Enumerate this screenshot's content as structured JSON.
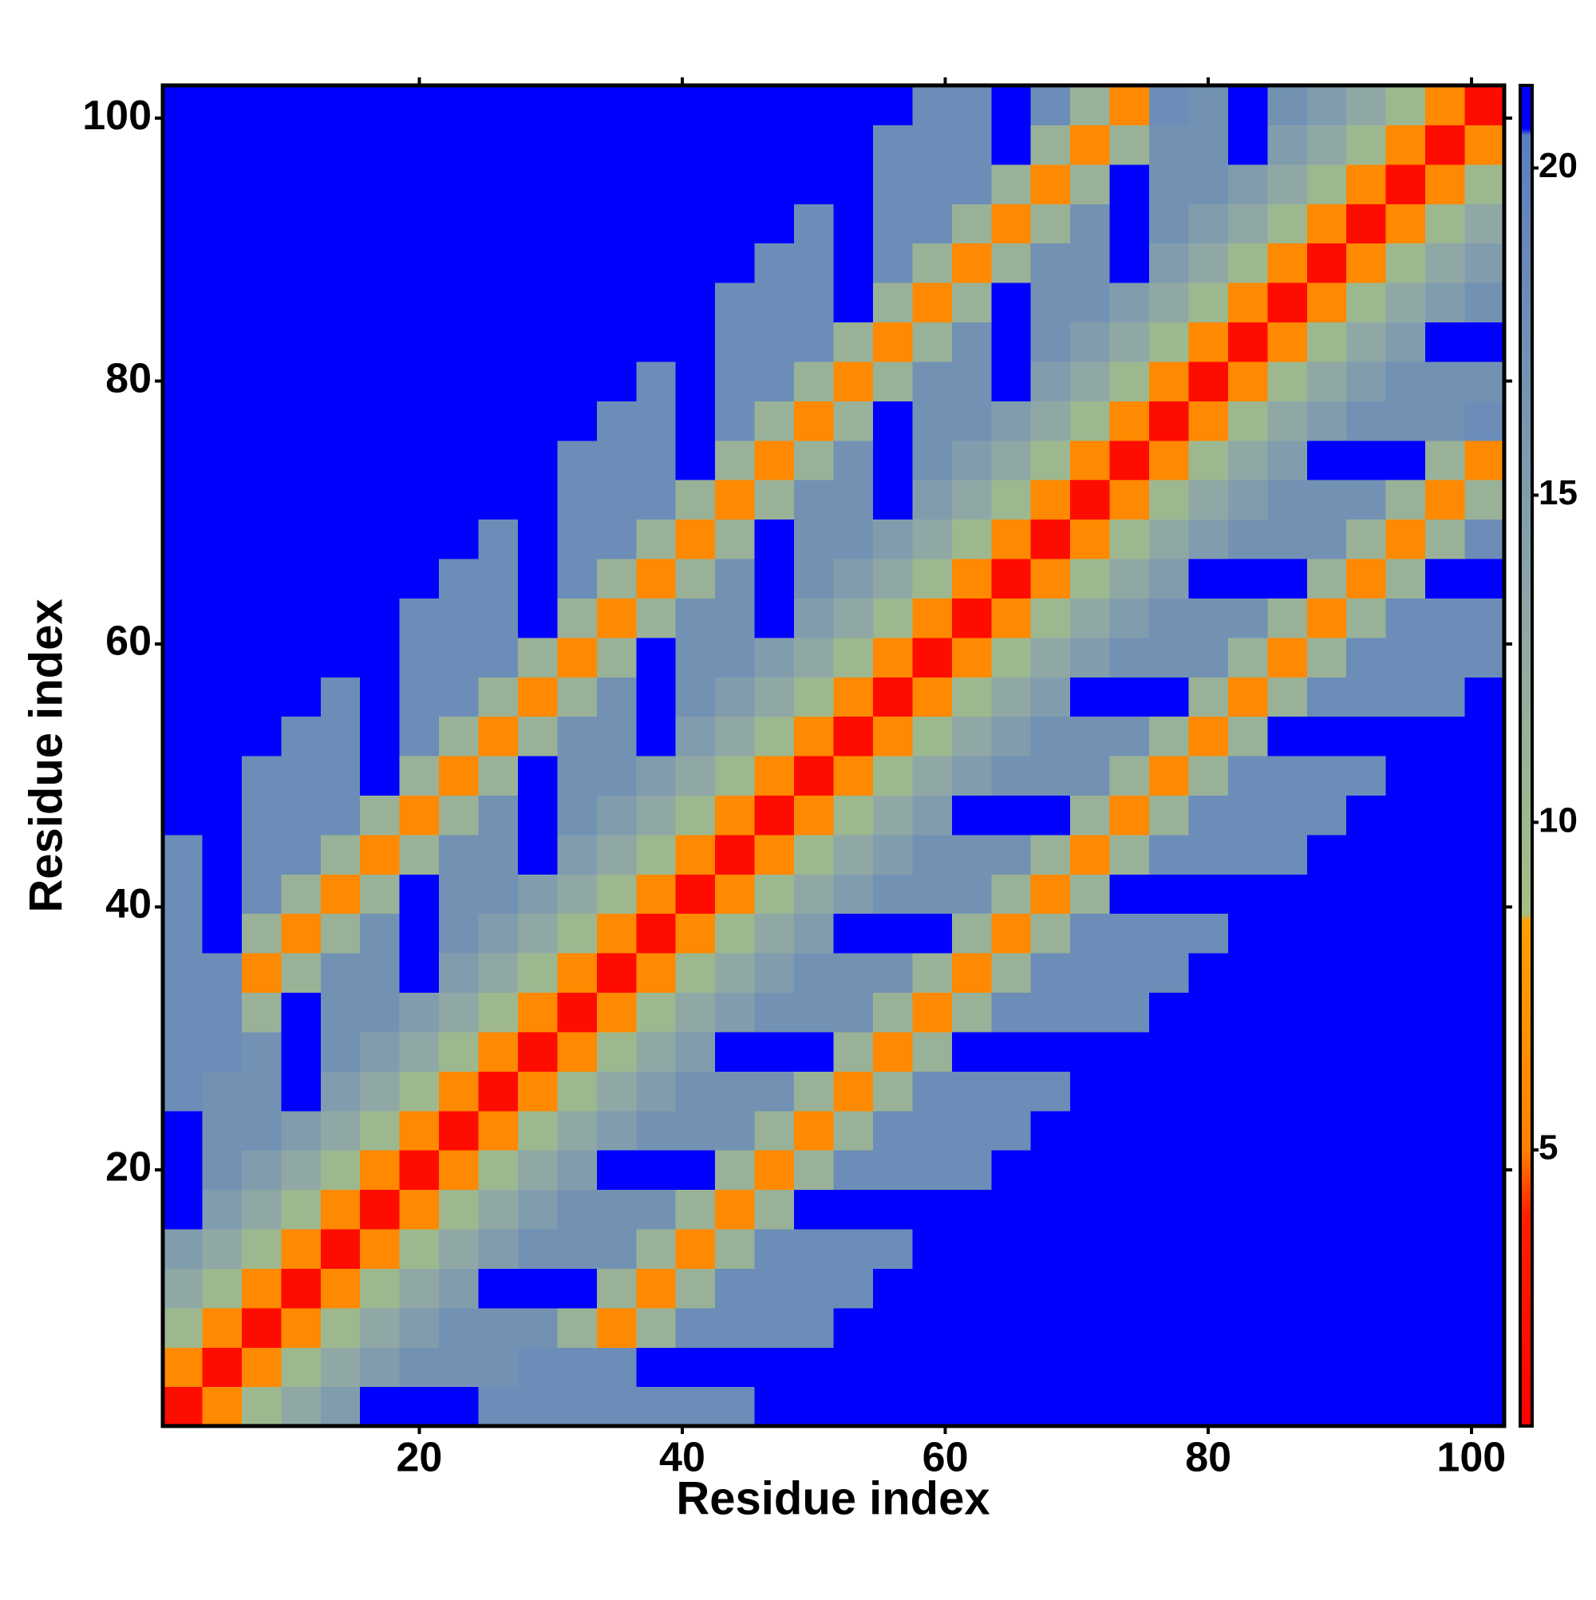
{
  "chart_data": {
    "type": "heatmap",
    "xlabel": "Residue index",
    "ylabel": "Residue index",
    "x": [
      2,
      5,
      8,
      11,
      14,
      17,
      20,
      23,
      26,
      29,
      32,
      35,
      38,
      41,
      44,
      47,
      50,
      53,
      56,
      59,
      62,
      65,
      68,
      71,
      74,
      77,
      80,
      83,
      86,
      89,
      92,
      95,
      98,
      101
    ],
    "y": [
      2,
      5,
      8,
      11,
      14,
      17,
      20,
      23,
      26,
      29,
      32,
      35,
      38,
      41,
      44,
      47,
      50,
      53,
      56,
      59,
      62,
      65,
      68,
      71,
      74,
      77,
      80,
      83,
      86,
      89,
      92,
      95,
      98,
      101
    ],
    "xlim": [
      0.5,
      102.5
    ],
    "ylim": [
      0.5,
      102.5
    ],
    "xticks": [
      20,
      40,
      60,
      80,
      100
    ],
    "yticks": [
      20,
      40,
      60,
      80,
      100
    ],
    "colorbar": {
      "lim": [
        0.78,
        21.26
      ],
      "ticks": [
        5,
        10,
        15,
        20
      ]
    },
    "colorscale": [
      {
        "value": 0.78,
        "color": "#ff0000"
      },
      {
        "value": 4,
        "color": "#ff2000"
      },
      {
        "value": 5,
        "color": "#ff8000"
      },
      {
        "value": 8.5,
        "color": "#ffa000"
      },
      {
        "value": 8.6,
        "color": "#a4bf84"
      },
      {
        "value": 13,
        "color": "#8fa8a6"
      },
      {
        "value": 20.5,
        "color": "#5b7fbf"
      },
      {
        "value": 20.6,
        "color": "#0000ff"
      },
      {
        "value": 21.26,
        "color": "#0000ff"
      }
    ],
    "values": [
      [
        2,
        6,
        10,
        13,
        15,
        21,
        21,
        21,
        18,
        18,
        18,
        18,
        18,
        18,
        18,
        21,
        21,
        21,
        21,
        21,
        21,
        21,
        21,
        21,
        21,
        21,
        21,
        21,
        21,
        21,
        21,
        21,
        21,
        21
      ],
      [
        6,
        2,
        6,
        10,
        13,
        15,
        17,
        17,
        17,
        18,
        18,
        18,
        21,
        21,
        21,
        21,
        21,
        21,
        21,
        21,
        21,
        21,
        21,
        21,
        21,
        21,
        21,
        21,
        21,
        21,
        21,
        21,
        21,
        21
      ],
      [
        10,
        6,
        2,
        6,
        10,
        13,
        15,
        17,
        17,
        17,
        11,
        6,
        11,
        18,
        18,
        18,
        18,
        21,
        21,
        21,
        21,
        21,
        21,
        21,
        21,
        21,
        21,
        21,
        21,
        21,
        21,
        21,
        21,
        21
      ],
      [
        13,
        10,
        6,
        2,
        6,
        10,
        13,
        15,
        21,
        21,
        21,
        11,
        6,
        11,
        18,
        18,
        18,
        18,
        21,
        21,
        21,
        21,
        21,
        21,
        21,
        21,
        21,
        21,
        21,
        21,
        21,
        21,
        21,
        21
      ],
      [
        15,
        13,
        10,
        6,
        2,
        6,
        10,
        13,
        15,
        17,
        17,
        17,
        11,
        6,
        11,
        18,
        18,
        18,
        18,
        21,
        21,
        21,
        21,
        21,
        21,
        21,
        21,
        21,
        21,
        21,
        21,
        21,
        21,
        21
      ],
      [
        21,
        15,
        13,
        10,
        6,
        2,
        6,
        10,
        13,
        15,
        17,
        17,
        17,
        11,
        6,
        11,
        21,
        21,
        21,
        21,
        21,
        21,
        21,
        21,
        21,
        21,
        21,
        21,
        21,
        21,
        21,
        21,
        21,
        21
      ],
      [
        21,
        17,
        15,
        13,
        10,
        6,
        2,
        6,
        10,
        13,
        15,
        21,
        21,
        21,
        11,
        6,
        11,
        18,
        18,
        18,
        18,
        21,
        21,
        21,
        21,
        21,
        21,
        21,
        21,
        21,
        21,
        21,
        21,
        21
      ],
      [
        21,
        17,
        17,
        15,
        13,
        10,
        6,
        2,
        6,
        10,
        13,
        15,
        17,
        17,
        17,
        11,
        6,
        11,
        18,
        18,
        18,
        18,
        21,
        21,
        21,
        21,
        21,
        21,
        21,
        21,
        21,
        21,
        21,
        21
      ],
      [
        18,
        17,
        17,
        21,
        15,
        13,
        10,
        6,
        2,
        6,
        10,
        13,
        15,
        17,
        17,
        17,
        11,
        6,
        11,
        18,
        18,
        18,
        18,
        21,
        21,
        21,
        21,
        21,
        21,
        21,
        21,
        21,
        21,
        21
      ],
      [
        18,
        18,
        17,
        21,
        17,
        15,
        13,
        10,
        6,
        2,
        6,
        10,
        13,
        15,
        21,
        21,
        21,
        11,
        6,
        11,
        21,
        21,
        21,
        21,
        21,
        21,
        21,
        21,
        21,
        21,
        21,
        21,
        21,
        21
      ],
      [
        18,
        18,
        11,
        21,
        17,
        17,
        15,
        13,
        10,
        6,
        2,
        6,
        10,
        13,
        15,
        17,
        17,
        17,
        11,
        6,
        11,
        18,
        18,
        18,
        18,
        21,
        21,
        21,
        21,
        21,
        21,
        21,
        21,
        21
      ],
      [
        18,
        18,
        6,
        11,
        17,
        17,
        21,
        15,
        13,
        10,
        6,
        2,
        6,
        10,
        13,
        15,
        17,
        17,
        17,
        11,
        6,
        11,
        18,
        18,
        18,
        18,
        21,
        21,
        21,
        21,
        21,
        21,
        21,
        21
      ],
      [
        18,
        21,
        11,
        6,
        11,
        17,
        21,
        17,
        15,
        13,
        10,
        6,
        2,
        6,
        10,
        13,
        15,
        21,
        21,
        21,
        11,
        6,
        11,
        18,
        18,
        18,
        18,
        21,
        21,
        21,
        21,
        21,
        21,
        21
      ],
      [
        18,
        21,
        18,
        11,
        6,
        11,
        21,
        17,
        17,
        15,
        13,
        10,
        6,
        2,
        6,
        10,
        13,
        15,
        17,
        17,
        17,
        11,
        6,
        11,
        21,
        21,
        21,
        21,
        21,
        21,
        21,
        21,
        21,
        21
      ],
      [
        18,
        21,
        18,
        18,
        11,
        6,
        11,
        17,
        17,
        21,
        15,
        13,
        10,
        6,
        2,
        6,
        10,
        13,
        15,
        17,
        17,
        17,
        11,
        6,
        11,
        18,
        18,
        18,
        18,
        21,
        21,
        21,
        21,
        21
      ],
      [
        21,
        21,
        18,
        18,
        18,
        11,
        6,
        11,
        17,
        21,
        17,
        15,
        13,
        10,
        6,
        2,
        6,
        10,
        13,
        15,
        21,
        21,
        21,
        11,
        6,
        11,
        18,
        18,
        18,
        18,
        21,
        21,
        21,
        21
      ],
      [
        21,
        21,
        18,
        18,
        18,
        21,
        11,
        6,
        11,
        21,
        17,
        17,
        15,
        13,
        10,
        6,
        2,
        6,
        10,
        13,
        15,
        17,
        17,
        17,
        11,
        6,
        11,
        18,
        18,
        18,
        18,
        21,
        21,
        21
      ],
      [
        21,
        21,
        21,
        18,
        18,
        21,
        18,
        11,
        6,
        11,
        17,
        17,
        21,
        15,
        13,
        10,
        6,
        2,
        6,
        10,
        13,
        15,
        17,
        17,
        17,
        11,
        6,
        11,
        21,
        21,
        21,
        21,
        21,
        21
      ],
      [
        21,
        21,
        21,
        21,
        18,
        21,
        18,
        18,
        11,
        6,
        11,
        17,
        21,
        17,
        15,
        13,
        10,
        6,
        2,
        6,
        10,
        13,
        15,
        21,
        21,
        21,
        11,
        6,
        11,
        18,
        18,
        18,
        18,
        21
      ],
      [
        21,
        21,
        21,
        21,
        21,
        21,
        18,
        18,
        18,
        11,
        6,
        11,
        21,
        17,
        17,
        15,
        13,
        10,
        6,
        2,
        6,
        10,
        13,
        15,
        17,
        17,
        17,
        11,
        6,
        11,
        18,
        18,
        18,
        18
      ],
      [
        21,
        21,
        21,
        21,
        21,
        21,
        18,
        18,
        18,
        21,
        11,
        6,
        11,
        17,
        17,
        21,
        15,
        13,
        10,
        6,
        2,
        6,
        10,
        13,
        15,
        17,
        17,
        17,
        11,
        6,
        11,
        18,
        18,
        18
      ],
      [
        21,
        21,
        21,
        21,
        21,
        21,
        21,
        18,
        18,
        21,
        18,
        11,
        6,
        11,
        17,
        21,
        17,
        15,
        13,
        10,
        6,
        2,
        6,
        10,
        13,
        15,
        21,
        21,
        21,
        11,
        6,
        11,
        21,
        21
      ],
      [
        21,
        21,
        21,
        21,
        21,
        21,
        21,
        21,
        18,
        21,
        18,
        18,
        11,
        6,
        11,
        21,
        17,
        17,
        15,
        13,
        10,
        6,
        2,
        6,
        10,
        13,
        15,
        17,
        17,
        17,
        11,
        6,
        11,
        18
      ],
      [
        21,
        21,
        21,
        21,
        21,
        21,
        21,
        21,
        21,
        21,
        18,
        18,
        18,
        11,
        6,
        11,
        17,
        17,
        21,
        15,
        13,
        10,
        6,
        2,
        6,
        10,
        13,
        15,
        17,
        17,
        17,
        11,
        6,
        11
      ],
      [
        21,
        21,
        21,
        21,
        21,
        21,
        21,
        21,
        21,
        21,
        18,
        18,
        18,
        21,
        11,
        6,
        11,
        17,
        21,
        17,
        15,
        13,
        10,
        6,
        2,
        6,
        10,
        13,
        15,
        21,
        21,
        21,
        11,
        6
      ],
      [
        21,
        21,
        21,
        21,
        21,
        21,
        21,
        21,
        21,
        21,
        21,
        18,
        18,
        21,
        18,
        11,
        6,
        11,
        21,
        17,
        17,
        15,
        13,
        10,
        6,
        2,
        6,
        10,
        13,
        15,
        17,
        17,
        17,
        18
      ],
      [
        21,
        21,
        21,
        21,
        21,
        21,
        21,
        21,
        21,
        21,
        21,
        21,
        18,
        21,
        18,
        18,
        11,
        6,
        11,
        17,
        17,
        21,
        15,
        13,
        10,
        6,
        2,
        6,
        10,
        13,
        15,
        17,
        17,
        17
      ],
      [
        21,
        21,
        21,
        21,
        21,
        21,
        21,
        21,
        21,
        21,
        21,
        21,
        21,
        21,
        18,
        18,
        18,
        11,
        6,
        11,
        17,
        21,
        17,
        15,
        13,
        10,
        6,
        2,
        6,
        10,
        13,
        15,
        21,
        21
      ],
      [
        21,
        21,
        21,
        21,
        21,
        21,
        21,
        21,
        21,
        21,
        21,
        21,
        21,
        21,
        18,
        18,
        18,
        21,
        11,
        6,
        11,
        21,
        17,
        17,
        15,
        13,
        10,
        6,
        2,
        6,
        10,
        13,
        15,
        17
      ],
      [
        21,
        21,
        21,
        21,
        21,
        21,
        21,
        21,
        21,
        21,
        21,
        21,
        21,
        21,
        21,
        18,
        18,
        21,
        18,
        11,
        6,
        11,
        17,
        17,
        21,
        15,
        13,
        10,
        6,
        2,
        6,
        10,
        13,
        15
      ],
      [
        21,
        21,
        21,
        21,
        21,
        21,
        21,
        21,
        21,
        21,
        21,
        21,
        21,
        21,
        21,
        21,
        18,
        21,
        18,
        18,
        11,
        6,
        11,
        17,
        21,
        17,
        15,
        13,
        10,
        6,
        2,
        6,
        10,
        13
      ],
      [
        21,
        21,
        21,
        21,
        21,
        21,
        21,
        21,
        21,
        21,
        21,
        21,
        21,
        21,
        21,
        21,
        21,
        21,
        18,
        18,
        18,
        11,
        6,
        11,
        21,
        17,
        17,
        15,
        13,
        10,
        6,
        2,
        6,
        10
      ],
      [
        21,
        21,
        21,
        21,
        21,
        21,
        21,
        21,
        21,
        21,
        21,
        21,
        21,
        21,
        21,
        21,
        21,
        21,
        18,
        18,
        18,
        21,
        11,
        6,
        11,
        17,
        17,
        21,
        15,
        13,
        10,
        6,
        2,
        6
      ],
      [
        21,
        21,
        21,
        21,
        21,
        21,
        21,
        21,
        21,
        21,
        21,
        21,
        21,
        21,
        21,
        21,
        21,
        21,
        21,
        18,
        18,
        21,
        18,
        11,
        6,
        18,
        17,
        21,
        17,
        15,
        13,
        10,
        6,
        2
      ]
    ]
  }
}
